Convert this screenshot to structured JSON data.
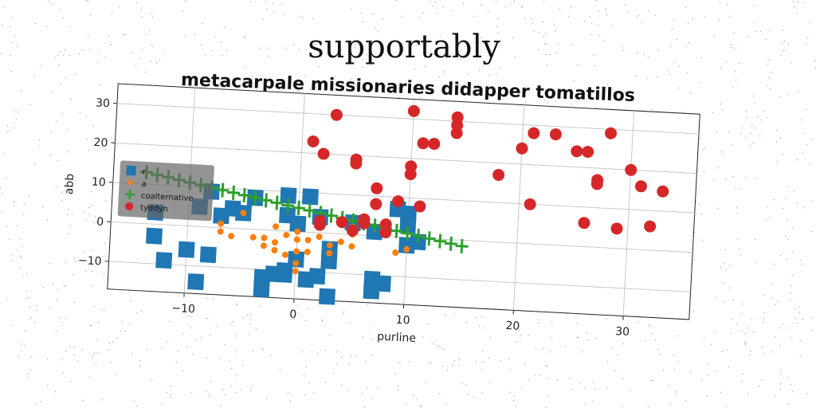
{
  "page": {
    "title": "supportably",
    "subtitle": "metacarpale missionaries didapper tomatillos"
  },
  "chart_data": {
    "type": "scatter",
    "xlabel": "purline",
    "ylabel": "abb",
    "xlim": [
      -17,
      36
    ],
    "ylim": [
      -17,
      35
    ],
    "xticks": [
      -10,
      0,
      10,
      20,
      30
    ],
    "yticks": [
      -10,
      0,
      10,
      20,
      30
    ],
    "grid": true,
    "legend_position": "upper-left",
    "series": [
      {
        "name": "r",
        "marker": "square",
        "color": "#1f77b4",
        "points": [
          [
            -13,
            -3
          ],
          [
            -12,
            -9
          ],
          [
            -10,
            -6
          ],
          [
            -8,
            -7
          ],
          [
            -9,
            -14
          ],
          [
            -13,
            3
          ],
          [
            -9,
            5
          ],
          [
            -8,
            9
          ],
          [
            -7,
            3
          ],
          [
            -6,
            5
          ],
          [
            -4,
            8
          ],
          [
            -5,
            4
          ],
          [
            -3,
            -12
          ],
          [
            -3,
            -15
          ],
          [
            -2,
            -11
          ],
          [
            -1,
            9
          ],
          [
            -1,
            4
          ],
          [
            -1,
            -10
          ],
          [
            -1,
            -11
          ],
          [
            0,
            -7
          ],
          [
            0,
            2
          ],
          [
            1,
            -12
          ],
          [
            1,
            9
          ],
          [
            2,
            -11
          ],
          [
            2,
            4
          ],
          [
            3,
            -7
          ],
          [
            3,
            -4
          ],
          [
            3,
            -16
          ],
          [
            5,
            3
          ],
          [
            7,
            1
          ],
          [
            7,
            -11
          ],
          [
            7,
            -14
          ],
          [
            8,
            -12
          ],
          [
            9,
            7
          ],
          [
            10,
            6
          ],
          [
            10,
            3
          ],
          [
            10,
            -2
          ],
          [
            11,
            -1
          ]
        ]
      },
      {
        "name": "a",
        "marker": "circle-small",
        "color": "#ff7f0e",
        "points": [
          [
            -7,
            1
          ],
          [
            -5,
            4
          ],
          [
            -7,
            -1
          ],
          [
            -6,
            -2
          ],
          [
            -4,
            -2
          ],
          [
            -3,
            -4
          ],
          [
            -3,
            -2
          ],
          [
            -2,
            1
          ],
          [
            -2,
            -3
          ],
          [
            -2,
            -5
          ],
          [
            -1,
            -1
          ],
          [
            -1,
            -6
          ],
          [
            0,
            0
          ],
          [
            0,
            -2
          ],
          [
            0,
            -5
          ],
          [
            0,
            -8
          ],
          [
            0,
            -10
          ],
          [
            1,
            -5
          ],
          [
            1,
            -2
          ],
          [
            2,
            -1
          ],
          [
            3,
            -3
          ],
          [
            3,
            -5
          ],
          [
            4,
            -2
          ],
          [
            5,
            -3
          ],
          [
            5,
            0
          ],
          [
            5,
            2
          ],
          [
            9,
            -4
          ],
          [
            10,
            -3
          ]
        ]
      },
      {
        "name": "coalternative",
        "marker": "plus",
        "color": "#2ca02c",
        "points": [
          [
            -14,
            13
          ],
          [
            -13,
            12.5
          ],
          [
            -12,
            12
          ],
          [
            -11,
            11.5
          ],
          [
            -10,
            11
          ],
          [
            -9,
            10.5
          ],
          [
            -8,
            10
          ],
          [
            -7,
            9.5
          ],
          [
            -6,
            9
          ],
          [
            -5,
            8.5
          ],
          [
            -4,
            8
          ],
          [
            -3,
            7.5
          ],
          [
            -2,
            7
          ],
          [
            -1,
            6.5
          ],
          [
            0,
            6
          ],
          [
            1,
            5.5
          ],
          [
            2,
            5
          ],
          [
            3,
            4.5
          ],
          [
            4,
            4
          ],
          [
            5,
            3.5
          ],
          [
            6,
            3
          ],
          [
            7,
            2.5
          ],
          [
            8,
            2
          ],
          [
            9,
            1.5
          ],
          [
            10,
            1
          ],
          [
            11,
            0.5
          ],
          [
            12,
            0
          ],
          [
            13,
            -0.5
          ],
          [
            14,
            -1
          ],
          [
            15,
            -1.5
          ]
        ]
      },
      {
        "name": "tyddyn",
        "marker": "circle",
        "color": "#d62728",
        "points": [
          [
            3,
            30
          ],
          [
            10,
            32
          ],
          [
            14,
            31
          ],
          [
            14,
            29
          ],
          [
            14,
            27
          ],
          [
            1,
            23
          ],
          [
            11,
            24
          ],
          [
            12,
            24
          ],
          [
            2,
            20
          ],
          [
            5,
            19
          ],
          [
            5,
            18
          ],
          [
            10,
            18
          ],
          [
            10,
            16
          ],
          [
            7,
            12
          ],
          [
            7,
            8
          ],
          [
            9,
            9
          ],
          [
            11,
            8
          ],
          [
            2,
            3
          ],
          [
            2,
            2
          ],
          [
            4,
            3
          ],
          [
            6,
            4
          ],
          [
            6,
            3
          ],
          [
            8,
            3
          ],
          [
            8,
            1
          ],
          [
            5,
            1
          ],
          [
            18,
            17
          ],
          [
            20,
            24
          ],
          [
            21,
            28
          ],
          [
            23,
            28
          ],
          [
            25,
            24
          ],
          [
            26,
            24
          ],
          [
            28,
            29
          ],
          [
            27,
            16
          ],
          [
            27,
            17
          ],
          [
            30,
            20
          ],
          [
            31,
            16
          ],
          [
            33,
            15
          ],
          [
            21,
            10
          ],
          [
            26,
            6
          ],
          [
            29,
            5
          ],
          [
            32,
            6
          ]
        ]
      }
    ]
  }
}
